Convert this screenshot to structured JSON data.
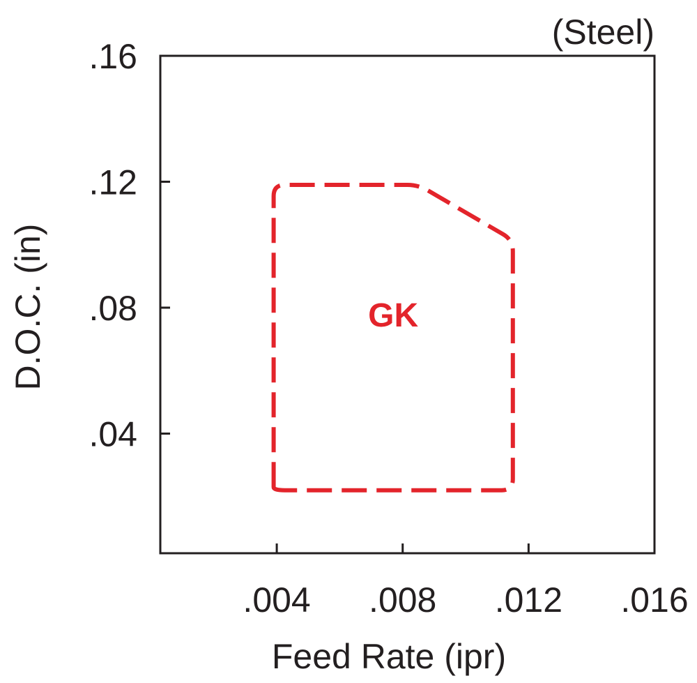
{
  "chart_data": {
    "type": "region",
    "corner_label": "(Steel)",
    "xlabel": "Feed Rate (ipr)",
    "ylabel": "D.O.C. (in)",
    "xlim": [
      0.0003,
      0.016
    ],
    "ylim": [
      0.002,
      0.16
    ],
    "x_ticks": [
      {
        "value": 0.004,
        "label": ".004"
      },
      {
        "value": 0.008,
        "label": ".008"
      },
      {
        "value": 0.012,
        "label": ".012"
      },
      {
        "value": 0.016,
        "label": ".016"
      }
    ],
    "y_ticks": [
      {
        "value": 0.04,
        "label": ".04"
      },
      {
        "value": 0.08,
        "label": ".08"
      },
      {
        "value": 0.12,
        "label": ".12"
      },
      {
        "value": 0.16,
        "label": ".16"
      }
    ],
    "grid": false,
    "regions": [
      {
        "name": "GK",
        "color": "#e3242b",
        "line_style": "dashed",
        "label_at": {
          "x": 0.0077,
          "y": 0.074
        },
        "boundary": [
          {
            "x": 0.0039,
            "y": 0.024
          },
          {
            "x": 0.0039,
            "y": 0.119
          },
          {
            "x": 0.0085,
            "y": 0.119
          },
          {
            "x": 0.0115,
            "y": 0.1015
          },
          {
            "x": 0.0115,
            "y": 0.022
          },
          {
            "x": 0.0039,
            "y": 0.022
          }
        ]
      }
    ]
  }
}
